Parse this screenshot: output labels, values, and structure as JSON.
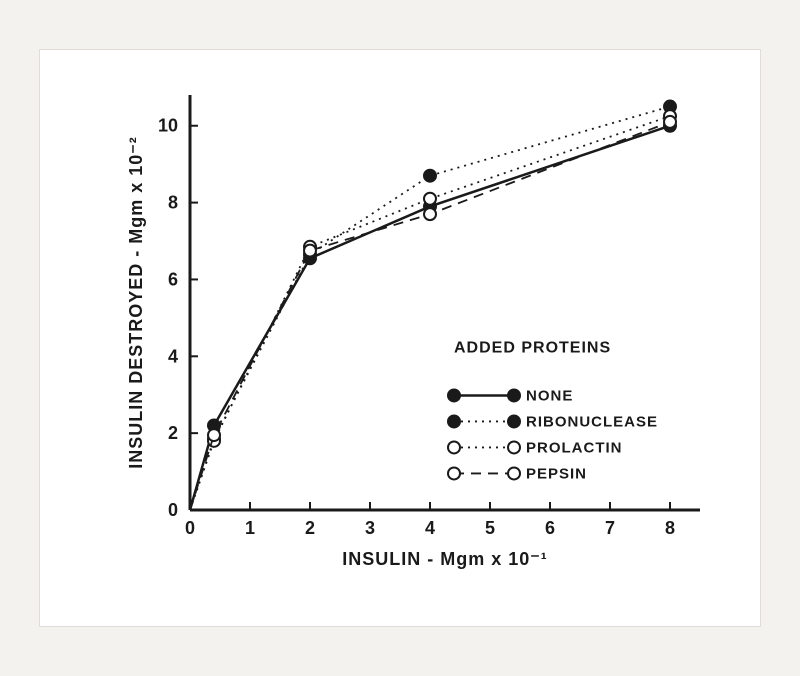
{
  "chart": {
    "type": "line",
    "background_color": "#ffffff",
    "page_background": "#f4f2ee",
    "axis_color": "#1a1a1a",
    "axis_width": 3,
    "xlabel": "INSULIN - Mgm x 10⁻¹",
    "ylabel": "INSULIN DESTROYED - Mgm x 10⁻²",
    "label_fontsize": 18,
    "tick_fontsize": 18,
    "xlim": [
      0,
      8.5
    ],
    "ylim": [
      0,
      10.8
    ],
    "xticks": [
      0,
      1,
      2,
      3,
      4,
      5,
      6,
      7,
      8
    ],
    "yticks": [
      0,
      2,
      4,
      6,
      8,
      10
    ],
    "tick_len": 8,
    "legend": {
      "title": "ADDED PROTEINS",
      "title_fontsize": 16,
      "label_fontsize": 15,
      "x": 4.4,
      "y_top": 4.1
    },
    "series": [
      {
        "name": "NONE",
        "marker": "filled",
        "marker_color": "#1a1a1a",
        "marker_radius": 6,
        "line_dash": "solid",
        "line_width": 2.5,
        "line_color": "#1a1a1a",
        "points": [
          [
            0,
            0
          ],
          [
            0.4,
            2.2
          ],
          [
            2,
            6.55
          ],
          [
            4,
            7.9
          ],
          [
            8,
            10.0
          ]
        ]
      },
      {
        "name": "RIBONUCLEASE",
        "marker": "filled",
        "marker_color": "#1a1a1a",
        "marker_radius": 6,
        "line_dash": "dot",
        "line_width": 1.8,
        "line_color": "#1a1a1a",
        "points": [
          [
            0,
            0
          ],
          [
            0.4,
            1.85
          ],
          [
            2,
            6.65
          ],
          [
            4,
            8.7
          ],
          [
            8,
            10.5
          ]
        ]
      },
      {
        "name": "PROLACTIN",
        "marker": "open",
        "marker_color": "#1a1a1a",
        "marker_fill": "#ffffff",
        "marker_radius": 6,
        "line_dash": "dot",
        "line_width": 1.8,
        "line_color": "#1a1a1a",
        "points": [
          [
            0,
            0
          ],
          [
            0.4,
            1.8
          ],
          [
            2,
            6.85
          ],
          [
            4,
            8.1
          ],
          [
            8,
            10.25
          ]
        ]
      },
      {
        "name": "PEPSIN",
        "marker": "open",
        "marker_color": "#1a1a1a",
        "marker_fill": "#ffffff",
        "marker_radius": 6,
        "line_dash": "dash",
        "line_width": 1.8,
        "line_color": "#1a1a1a",
        "points": [
          [
            0,
            0
          ],
          [
            0.4,
            1.95
          ],
          [
            2,
            6.75
          ],
          [
            4,
            7.7
          ],
          [
            8,
            10.1
          ]
        ]
      }
    ]
  }
}
